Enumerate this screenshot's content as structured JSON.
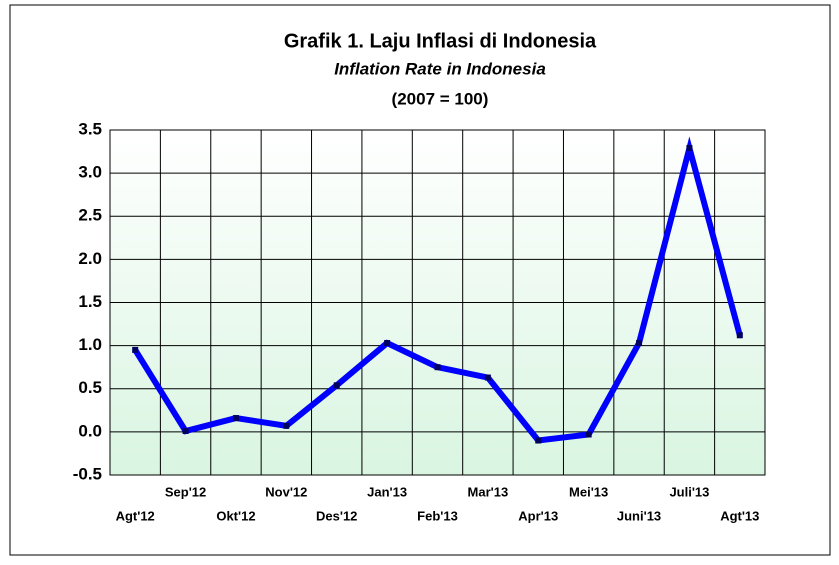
{
  "chart_data": {
    "type": "line",
    "title": "Grafik  1.   Laju Inflasi di Indonesia",
    "subtitle": "Inflation Rate in Indonesia",
    "note": "(2007 = 100)",
    "categories": [
      "Agt'12",
      "Sep'12",
      "Okt'12",
      "Nov'12",
      "Des'12",
      "Jan'13",
      "Feb'13",
      "Mar'13",
      "Apr'13",
      "Mei'13",
      "Juni'13",
      "Juli'13",
      "Agt'13"
    ],
    "values": [
      0.95,
      0.01,
      0.16,
      0.07,
      0.54,
      1.03,
      0.75,
      0.63,
      -0.1,
      -0.03,
      1.03,
      3.29,
      1.12
    ],
    "color": "#0000ff",
    "ylim": [
      -0.5,
      3.5
    ],
    "yticks": [
      -0.5,
      {
        "value": 0,
        "label": "0.0"
      },
      0.5,
      {
        "value": 1,
        "label": "1.0"
      },
      1.5,
      {
        "value": 2,
        "label": "2.0"
      },
      2.5,
      {
        "value": 3,
        "label": "3.0"
      },
      3.5
    ],
    "grid": true
  }
}
